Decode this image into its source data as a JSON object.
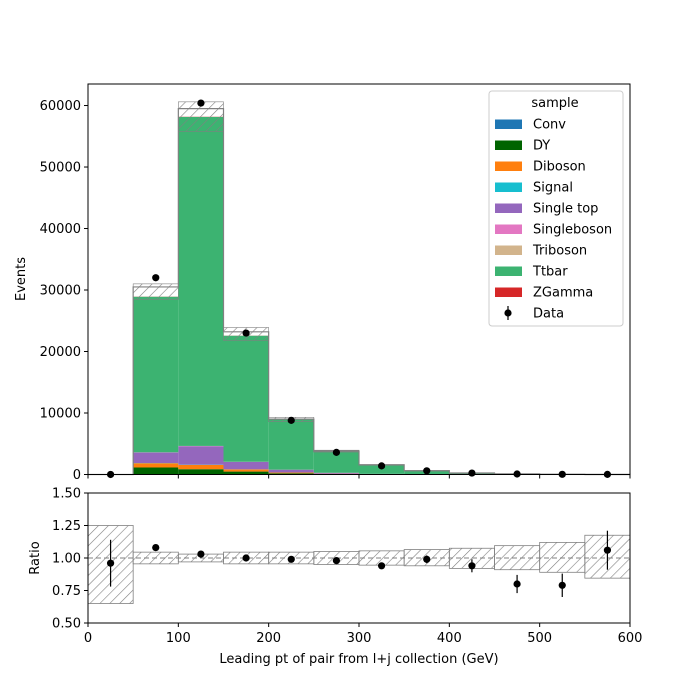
{
  "chart_data": {
    "type": "bar",
    "stacked": true,
    "xlabel": "Leading pt of pair from l+j collection (GeV)",
    "top_panel": {
      "ylabel": "Events",
      "ylim": [
        0,
        63500
      ],
      "yticks": [
        0,
        10000,
        20000,
        30000,
        40000,
        50000,
        60000
      ]
    },
    "ratio_panel": {
      "ylabel": "Ratio",
      "ylim": [
        0.5,
        1.5
      ],
      "yticks": [
        "0.50",
        "0.75",
        "1.00",
        "1.25",
        "1.50"
      ]
    },
    "xlim": [
      0,
      600
    ],
    "xticks": [
      0,
      100,
      200,
      300,
      400,
      500,
      600
    ],
    "bin_edges": [
      0,
      50,
      100,
      150,
      200,
      250,
      300,
      350,
      400,
      450,
      500,
      550,
      600
    ],
    "legend": {
      "title": "sample",
      "placement": "top-right"
    },
    "series": [
      {
        "name": "Conv",
        "color": "#1f77b4",
        "values": [
          0,
          40,
          60,
          25,
          10,
          4,
          2,
          1,
          0,
          0,
          0,
          0
        ]
      },
      {
        "name": "DY",
        "color": "#006400",
        "values": [
          0,
          1100,
          800,
          450,
          180,
          70,
          30,
          15,
          6,
          3,
          1,
          1
        ]
      },
      {
        "name": "Diboson",
        "color": "#ff7f0e",
        "values": [
          0,
          700,
          700,
          350,
          130,
          50,
          20,
          8,
          4,
          2,
          1,
          1
        ]
      },
      {
        "name": "Signal",
        "color": "#17becf",
        "values": [
          0,
          30,
          40,
          20,
          8,
          3,
          1,
          0,
          0,
          0,
          0,
          0
        ]
      },
      {
        "name": "Single top",
        "color": "#9467bd",
        "values": [
          0,
          1700,
          3000,
          1200,
          450,
          150,
          50,
          20,
          8,
          3,
          2,
          1
        ]
      },
      {
        "name": "Singleboson",
        "color": "#e377c2",
        "values": [
          0,
          30,
          40,
          20,
          8,
          3,
          1,
          0,
          0,
          0,
          0,
          0
        ]
      },
      {
        "name": "Triboson",
        "color": "#d2b48c",
        "values": [
          0,
          5,
          5,
          3,
          1,
          0,
          0,
          0,
          0,
          0,
          0,
          0
        ]
      },
      {
        "name": "Ttbar",
        "color": "#3cb371",
        "values": [
          0,
          25300,
          53500,
          20500,
          8200,
          3500,
          1450,
          570,
          230,
          92,
          36,
          16
        ]
      },
      {
        "name": "ZGamma",
        "color": "#d62728",
        "values": [
          0,
          20,
          30,
          15,
          6,
          2,
          1,
          0,
          0,
          0,
          0,
          0
        ]
      }
    ],
    "mc_total": [
      0,
      30500,
      59500,
      23200,
      9000,
      3800,
      1560,
      620,
      250,
      100,
      40,
      19
    ],
    "mc_unc_band": [
      {
        "lo": 0,
        "hi": 0
      },
      {
        "lo": 28500,
        "hi": 31000
      },
      {
        "lo": 55800,
        "hi": 60600
      },
      {
        "lo": 21800,
        "hi": 23900
      },
      {
        "lo": 8600,
        "hi": 9300
      },
      {
        "lo": 3650,
        "hi": 3950
      },
      {
        "lo": 1500,
        "hi": 1620
      },
      {
        "lo": 590,
        "hi": 650
      },
      {
        "lo": 235,
        "hi": 265
      },
      {
        "lo": 92,
        "hi": 108
      },
      {
        "lo": 36,
        "hi": 44
      },
      {
        "lo": 16,
        "hi": 22
      }
    ],
    "data": {
      "name": "Data",
      "x": [
        25,
        75,
        125,
        175,
        225,
        275,
        325,
        375,
        425,
        475,
        525,
        575
      ],
      "y": [
        5,
        32000,
        60400,
        23000,
        8800,
        3600,
        1400,
        600,
        230,
        80,
        30,
        20
      ]
    },
    "ratio": {
      "x": [
        25,
        75,
        125,
        175,
        225,
        275,
        325,
        375,
        425,
        475,
        525,
        575
      ],
      "y": [
        0.96,
        1.08,
        1.03,
        1.0,
        0.99,
        0.98,
        0.94,
        0.99,
        0.94,
        0.8,
        0.79,
        1.06
      ],
      "err": [
        0.18,
        0.01,
        0.005,
        0.01,
        0.012,
        0.015,
        0.02,
        0.03,
        0.05,
        0.07,
        0.09,
        0.15
      ]
    },
    "ratio_band": [
      {
        "lo": 0.65,
        "hi": 1.25
      },
      {
        "lo": 0.955,
        "hi": 1.045
      },
      {
        "lo": 0.97,
        "hi": 1.03
      },
      {
        "lo": 0.955,
        "hi": 1.045
      },
      {
        "lo": 0.955,
        "hi": 1.045
      },
      {
        "lo": 0.95,
        "hi": 1.05
      },
      {
        "lo": 0.945,
        "hi": 1.055
      },
      {
        "lo": 0.94,
        "hi": 1.065
      },
      {
        "lo": 0.92,
        "hi": 1.075
      },
      {
        "lo": 0.91,
        "hi": 1.095
      },
      {
        "lo": 0.89,
        "hi": 1.12
      },
      {
        "lo": 0.845,
        "hi": 1.175
      }
    ],
    "grid": false
  }
}
